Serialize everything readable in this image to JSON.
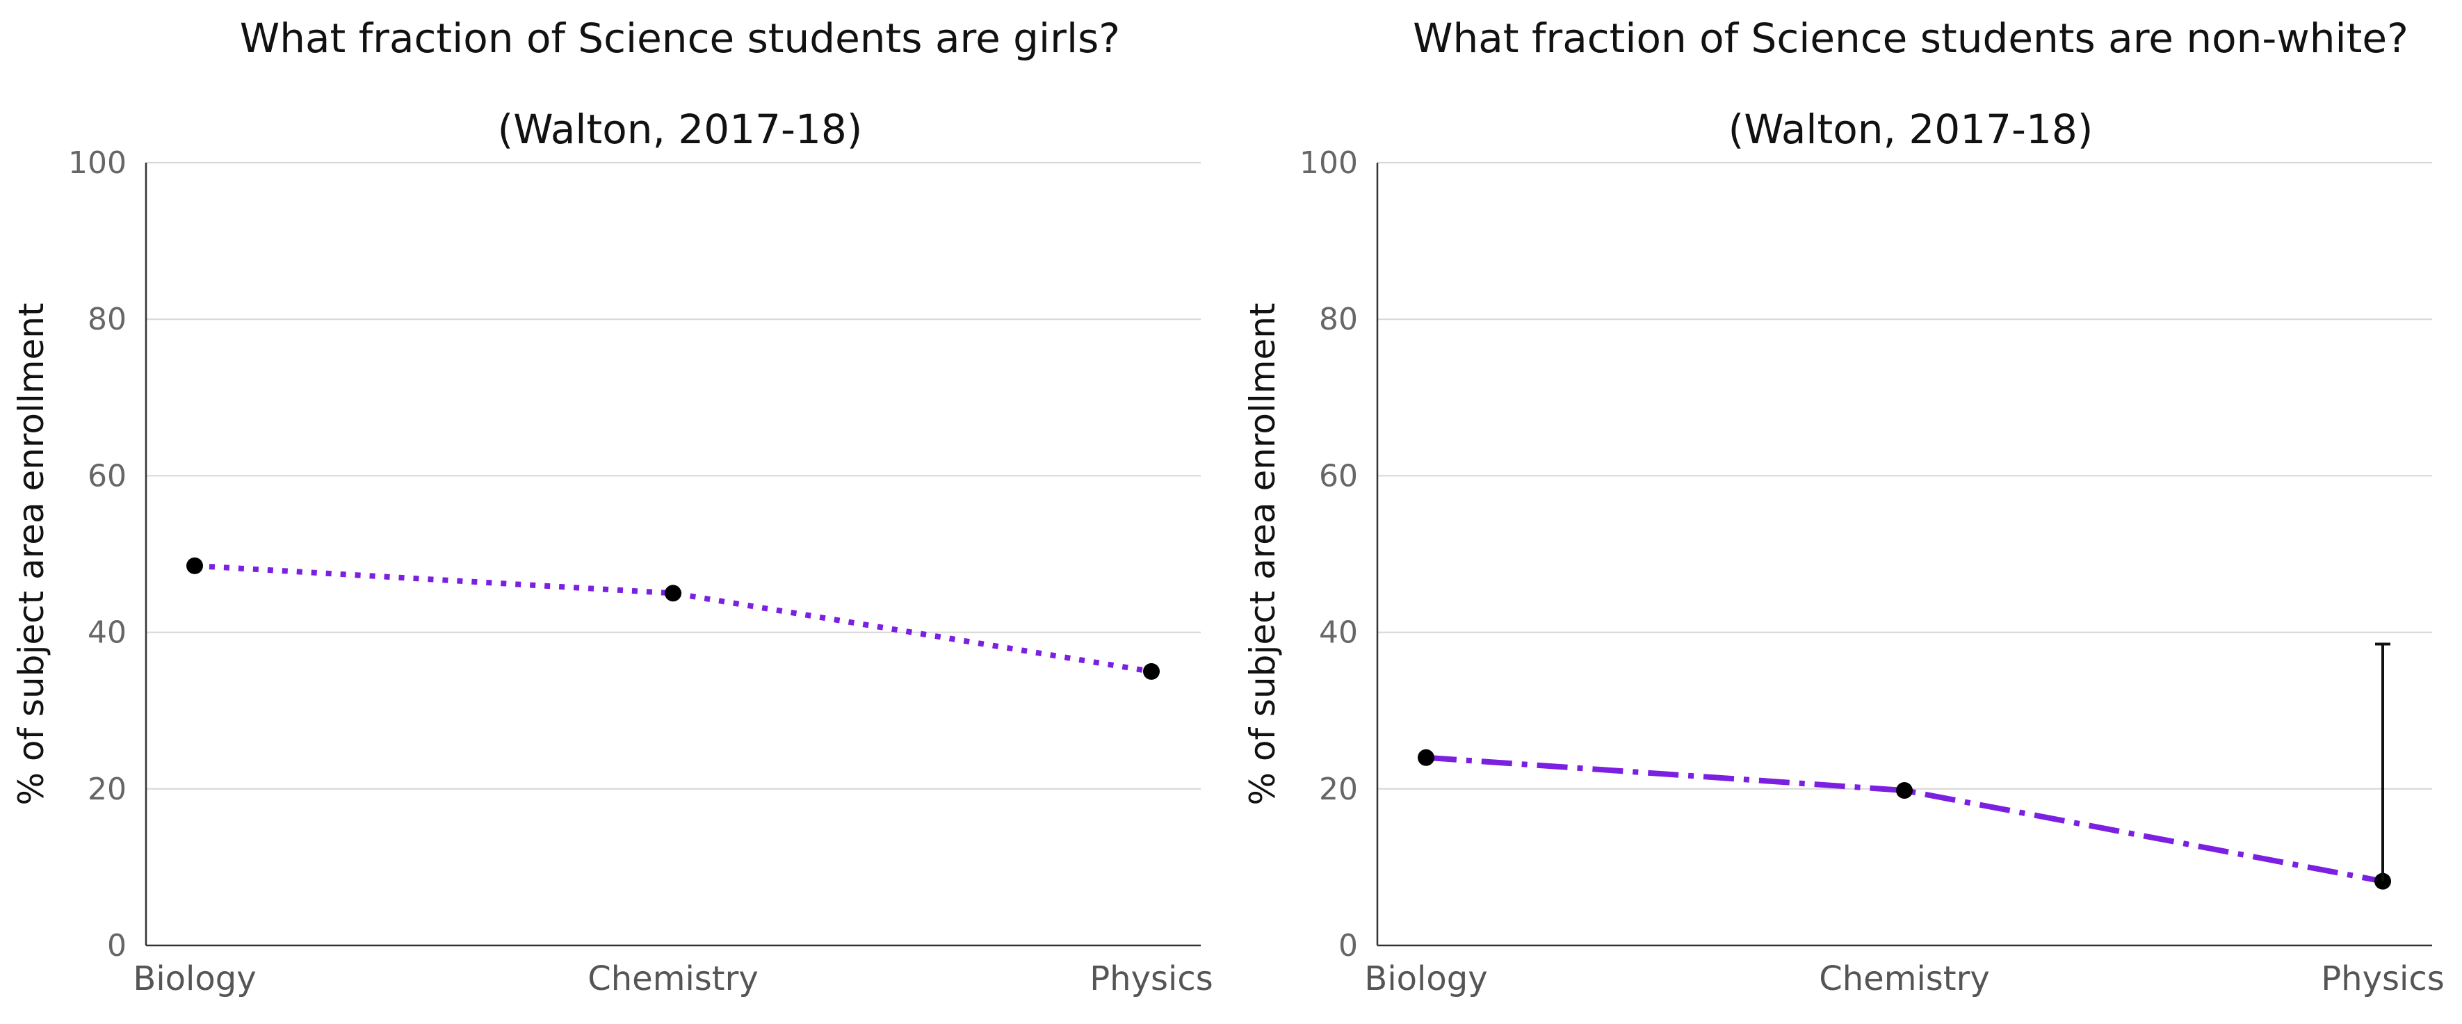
{
  "chart_data": [
    {
      "type": "line",
      "title": "What fraction of Science students are girls?",
      "subtitle": "(Walton, 2017-18)",
      "xlabel": "",
      "ylabel": "% of subject area enrollment",
      "categories": [
        "Biology",
        "Chemistry",
        "Physics"
      ],
      "ylim": [
        0,
        100
      ],
      "yticks": [
        "0",
        "20",
        "40",
        "60",
        "80",
        "100"
      ],
      "grid": true,
      "line_style": "dotted",
      "color": "#7b1fe0",
      "series": [
        {
          "values": [
            48.5,
            45,
            35
          ]
        }
      ]
    },
    {
      "type": "line",
      "title": "What fraction of Science students are non-white?",
      "subtitle": "(Walton, 2017-18)",
      "xlabel": "",
      "ylabel": "% of subject area enrollment",
      "categories": [
        "Biology",
        "Chemistry",
        "Physics"
      ],
      "ylim": [
        0,
        100
      ],
      "yticks": [
        "0",
        "20",
        "40",
        "60",
        "80",
        "100"
      ],
      "grid": true,
      "line_style": "dash-dot",
      "color": "#7b1fe0",
      "series": [
        {
          "values": [
            24,
            19.8,
            8.2
          ]
        }
      ],
      "error_bars": [
        {
          "category": "Physics",
          "low": 8.2,
          "high": 38.5
        }
      ]
    }
  ]
}
